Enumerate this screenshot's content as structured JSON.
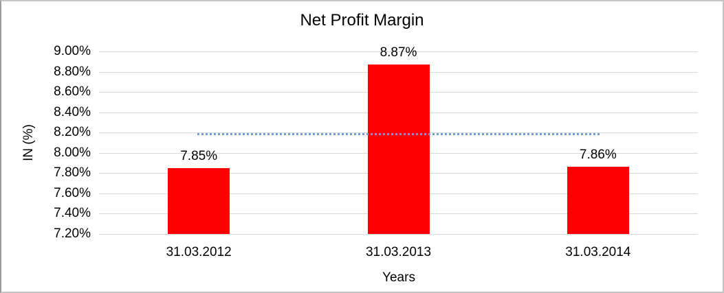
{
  "chart_data": {
    "type": "bar",
    "title": "Net Profit Margin",
    "xlabel": "Years",
    "ylabel": "IN (%)",
    "categories": [
      "31.03.2012",
      "31.03.2013",
      "31.03.2014"
    ],
    "series": [
      {
        "name": "Net Profit Margin",
        "values": [
          7.85,
          8.87,
          7.86
        ],
        "data_labels": [
          "7.85%",
          "8.87%",
          "7.86%"
        ],
        "color": "#ff0000"
      }
    ],
    "yticks": {
      "values": [
        7.2,
        7.4,
        7.6,
        7.8,
        8.0,
        8.2,
        8.4,
        8.6,
        8.8,
        9.0
      ],
      "labels": [
        "7.20%",
        "7.40%",
        "7.60%",
        "7.80%",
        "8.00%",
        "8.20%",
        "8.40%",
        "8.60%",
        "8.80%",
        "9.00%"
      ]
    },
    "ylim": [
      7.2,
      9.0
    ],
    "grid": true,
    "legend": "none",
    "trendline": {
      "style": "dotted",
      "value": 8.19,
      "from_category": 0,
      "to_category": 2,
      "color": "#6f9fd8"
    },
    "colors": {
      "bar": "#ff0000",
      "gridline": "#d9d9d9",
      "text": "#000000",
      "frame_border": "#c4c4c4"
    }
  }
}
